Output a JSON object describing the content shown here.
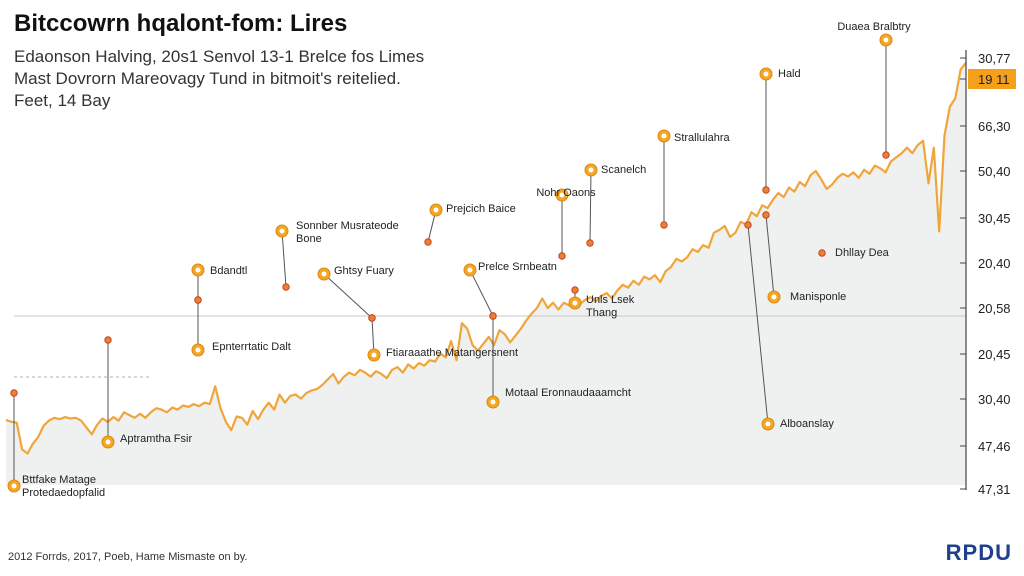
{
  "header": {
    "title": "Bitccowrn hqalont-fom: Lires",
    "subtitle_lines": [
      "Edaonson Halving, 20s1 Senvol 13-1 Brelce fos Limes",
      "Mast Dovrorn Mareovagy Tund in bitmoit's reitelied.",
      "Feet, 14 Bay"
    ]
  },
  "footer": {
    "text": "2012 Forrds, 2017, Poeb, Hame Mismaste on by."
  },
  "logo": {
    "text": "RPDU"
  },
  "colors": {
    "line": "#f0a53a",
    "area": "#eceeef",
    "marker_fill": "#f5a623",
    "marker_stroke": "#c9441a",
    "price_tag": "#f5a01a"
  },
  "chart_data": {
    "type": "line",
    "y_tick_labels": [
      "30,77",
      "19 11",
      "66,30",
      "50,40",
      "30,45",
      "20,40",
      "20,58",
      "20,45",
      "30,40",
      "47,46",
      "47,31"
    ],
    "highlighted_tick": "19 11",
    "grid": false,
    "series": [
      {
        "values": [
          4.75,
          4.6,
          4.55,
          2.6,
          2.3,
          3,
          3.5,
          4.3,
          4.7,
          4.9,
          4.8,
          4.95,
          4.85,
          4.9,
          4.7,
          4.2,
          3.7,
          4.4,
          4.85,
          4.6,
          4.95,
          4.7,
          5.3,
          5.1,
          4.9,
          5.2,
          4.9,
          5.3,
          5.6,
          5.5,
          5.3,
          5.65,
          5.5,
          5.8,
          5.7,
          5.9,
          5.75,
          6,
          5.9,
          7.2,
          5.6,
          4.6,
          4.0,
          5.0,
          4.9,
          4.4,
          5.4,
          4.8,
          5.5,
          6,
          5.5,
          6.6,
          6.0,
          6.5,
          6.6,
          6.3,
          6.7,
          6.9,
          7.0,
          7.3,
          7.7,
          8.1,
          7.4,
          7.9,
          8.2,
          8.0,
          8.4,
          8.2,
          7.9,
          8.3,
          8.1,
          7.8,
          8.4,
          8.6,
          8.2,
          8.8,
          8.5,
          8.9,
          8.7,
          9.1,
          9.0,
          9.6,
          9.3,
          10.5,
          9.1,
          11.8,
          11.4,
          10.2,
          9.8,
          10.3,
          10.8,
          10.2,
          11.3,
          11.0,
          10.4,
          10.9,
          11.4,
          12.0,
          12.5,
          12.9,
          13.6,
          12.9,
          13.3,
          12.8,
          13.3,
          13.1,
          13.6,
          13.2,
          13.5,
          13.7,
          13.4,
          13.8,
          14.0,
          13.6,
          14.2,
          14.6,
          14.4,
          14.9,
          14.6,
          15.2,
          15.0,
          15.3,
          14.8,
          15.6,
          15.9,
          16.5,
          16.3,
          16.6,
          17.2,
          17.0,
          17.5,
          17.3,
          18.4,
          18.6,
          18.9,
          18.1,
          18.4,
          19.2,
          19.0,
          19.9,
          19.6,
          20.4,
          20.2,
          20.8,
          21.3,
          21.0,
          21.7,
          21.4,
          22.1,
          21.8,
          22.6,
          22.9,
          22.3,
          21.6,
          21.9,
          22.4,
          22.7,
          22.5,
          22.8,
          22.4,
          23.0,
          22.7,
          23.3,
          23.1,
          22.8,
          23.6,
          23.9,
          24.2,
          24.6,
          24.2,
          24.8,
          25.1,
          22.0,
          24.6,
          18.5,
          25.5,
          27.6,
          28.2,
          30.3,
          30.8
        ]
      }
    ],
    "annotations": [
      {
        "text": "Bttfake Matage Protedaedopfalid"
      },
      {
        "text": "Aptramtha Fsir"
      },
      {
        "text": "Bdandtl"
      },
      {
        "text": "Epnterrtatic Dalt"
      },
      {
        "text": "Sonnber Musrateode Bone"
      },
      {
        "text": "Ghtsy Fuary"
      },
      {
        "text": "Ftiaraaathe Matangersnent"
      },
      {
        "text": "Prejcich Baice"
      },
      {
        "text": "Prelce Srnbeatn"
      },
      {
        "text": "Motaal Eronnaudaaamcht"
      },
      {
        "text": "Nohr Oaons"
      },
      {
        "text": "Scanelch"
      },
      {
        "text": "Unls Lsek Thang"
      },
      {
        "text": "Strallulahra"
      },
      {
        "text": "Alboanslay"
      },
      {
        "text": "Hald"
      },
      {
        "text": "Manisponle"
      },
      {
        "text": "Dhllay Dea"
      },
      {
        "text": "Duaea Bralbtry"
      }
    ]
  }
}
